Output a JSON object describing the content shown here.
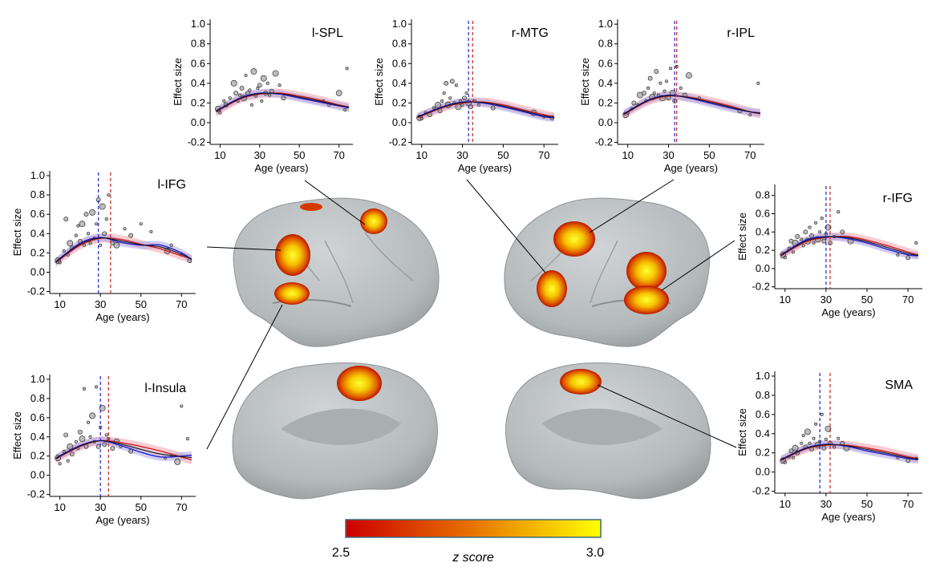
{
  "colorbar": {
    "min_label": "2.5",
    "max_label": "3.0",
    "label": "z score",
    "color_low": "#cc0000",
    "color_mid": "#e87400",
    "color_high": "#ffff00"
  },
  "colors": {
    "adult_fit": "#cc2222",
    "adult_band": "#f5a0a8",
    "child_fit": "#2222cc",
    "child_band": "#a9a6ea",
    "points": "#999999",
    "brain": "#b9bec0"
  },
  "chart_data": [
    {
      "type": "scatter",
      "title": "l-SPL",
      "xlabel": "Age (years)",
      "ylabel": "Effect size",
      "xlim": [
        5,
        77
      ],
      "ylim": [
        -0.22,
        1.05
      ],
      "xticks": [
        "10",
        "30",
        "50",
        "70"
      ],
      "yticks": [
        "-0.2",
        "0.0",
        "0.2",
        "0.4",
        "0.6",
        "0.8",
        "1.0"
      ],
      "vlines": [],
      "peak": 0.3,
      "series": [
        {
          "x": [
            8,
            20,
            30,
            40,
            50,
            60,
            70,
            75
          ],
          "y": [
            0.11,
            0.24,
            0.29,
            0.3,
            0.27,
            0.23,
            0.18,
            0.16
          ]
        },
        {
          "x": [
            8,
            20,
            30,
            40,
            50,
            60,
            70,
            75
          ],
          "y": [
            0.12,
            0.25,
            0.3,
            0.29,
            0.25,
            0.21,
            0.17,
            0.15
          ]
        }
      ],
      "points": [
        [
          9,
          0.14
        ],
        [
          10,
          0.1
        ],
        [
          12,
          0.22
        ],
        [
          13,
          0.18
        ],
        [
          15,
          0.25
        ],
        [
          17,
          0.4
        ],
        [
          18,
          0.3
        ],
        [
          19,
          0.22
        ],
        [
          20,
          0.28
        ],
        [
          21,
          0.35
        ],
        [
          22,
          0.25
        ],
        [
          23,
          0.48
        ],
        [
          24,
          0.3
        ],
        [
          25,
          0.33
        ],
        [
          26,
          0.18
        ],
        [
          27,
          0.52
        ],
        [
          28,
          0.27
        ],
        [
          29,
          0.35
        ],
        [
          30,
          0.38
        ],
        [
          31,
          0.22
        ],
        [
          32,
          0.45
        ],
        [
          33,
          0.3
        ],
        [
          34,
          0.4
        ],
        [
          35,
          0.28
        ],
        [
          36,
          0.32
        ],
        [
          38,
          0.5
        ],
        [
          40,
          0.38
        ],
        [
          42,
          0.25
        ],
        [
          62,
          0.22
        ],
        [
          65,
          0.18
        ],
        [
          70,
          0.3
        ],
        [
          73,
          0.13
        ],
        [
          74,
          0.55
        ]
      ]
    },
    {
      "type": "scatter",
      "title": "r-MTG",
      "xlabel": "Age (years)",
      "ylabel": "Effect size",
      "xlim": [
        5,
        77
      ],
      "ylim": [
        -0.22,
        1.05
      ],
      "xticks": [
        "10",
        "30",
        "50",
        "70"
      ],
      "yticks": [
        "-0.2",
        "0.0",
        "0.2",
        "0.4",
        "0.6",
        "0.8",
        "1.0"
      ],
      "vlines": [
        33,
        35
      ],
      "peak": 0.21,
      "series": [
        {
          "x": [
            8,
            20,
            30,
            40,
            50,
            60,
            70,
            75
          ],
          "y": [
            0.05,
            0.15,
            0.2,
            0.21,
            0.18,
            0.13,
            0.08,
            0.06
          ]
        },
        {
          "x": [
            8,
            20,
            30,
            40,
            50,
            60,
            70,
            75
          ],
          "y": [
            0.06,
            0.16,
            0.21,
            0.2,
            0.16,
            0.11,
            0.06,
            0.05
          ]
        }
      ],
      "points": [
        [
          9,
          0.05
        ],
        [
          10,
          0.04
        ],
        [
          12,
          0.1
        ],
        [
          14,
          0.08
        ],
        [
          16,
          0.15
        ],
        [
          18,
          0.18
        ],
        [
          19,
          0.12
        ],
        [
          20,
          0.22
        ],
        [
          21,
          0.3
        ],
        [
          22,
          0.4
        ],
        [
          23,
          0.18
        ],
        [
          24,
          0.25
        ],
        [
          25,
          0.42
        ],
        [
          26,
          0.2
        ],
        [
          27,
          0.38
        ],
        [
          28,
          0.16
        ],
        [
          29,
          0.22
        ],
        [
          30,
          0.18
        ],
        [
          31,
          0.25
        ],
        [
          32,
          0.3
        ],
        [
          33,
          0.2
        ],
        [
          34,
          0.16
        ],
        [
          36,
          0.22
        ],
        [
          38,
          0.18
        ],
        [
          45,
          0.15
        ],
        [
          65,
          0.1
        ],
        [
          70,
          0.06
        ],
        [
          74,
          0.05
        ]
      ]
    },
    {
      "type": "scatter",
      "title": "r-IPL",
      "xlabel": "Age (years)",
      "ylabel": "Effect size",
      "xlim": [
        5,
        77
      ],
      "ylim": [
        -0.22,
        1.05
      ],
      "xticks": [
        "10",
        "30",
        "50",
        "70"
      ],
      "yticks": [
        "-0.2",
        "0.0",
        "0.2",
        "0.4",
        "0.6",
        "0.8",
        "1.0"
      ],
      "vlines": [
        33,
        34
      ],
      "peak": 0.27,
      "series": [
        {
          "x": [
            8,
            20,
            30,
            40,
            50,
            60,
            70,
            75
          ],
          "y": [
            0.08,
            0.22,
            0.27,
            0.26,
            0.22,
            0.17,
            0.11,
            0.09
          ]
        },
        {
          "x": [
            8,
            20,
            30,
            40,
            50,
            60,
            70,
            75
          ],
          "y": [
            0.09,
            0.23,
            0.28,
            0.25,
            0.2,
            0.15,
            0.11,
            0.1
          ]
        }
      ],
      "points": [
        [
          9,
          0.08
        ],
        [
          10,
          0.1
        ],
        [
          12,
          0.14
        ],
        [
          13,
          0.2
        ],
        [
          15,
          0.18
        ],
        [
          16,
          0.28
        ],
        [
          18,
          0.3
        ],
        [
          19,
          0.22
        ],
        [
          20,
          0.35
        ],
        [
          21,
          0.45
        ],
        [
          22,
          0.26
        ],
        [
          23,
          0.3
        ],
        [
          24,
          0.52
        ],
        [
          25,
          0.28
        ],
        [
          26,
          0.4
        ],
        [
          27,
          0.25
        ],
        [
          28,
          0.32
        ],
        [
          29,
          0.42
        ],
        [
          30,
          0.25
        ],
        [
          31,
          0.55
        ],
        [
          32,
          0.3
        ],
        [
          33,
          0.22
        ],
        [
          34,
          0.57
        ],
        [
          36,
          0.35
        ],
        [
          38,
          0.28
        ],
        [
          40,
          0.48
        ],
        [
          45,
          0.25
        ],
        [
          65,
          0.12
        ],
        [
          70,
          0.08
        ],
        [
          74,
          0.4
        ]
      ]
    },
    {
      "type": "scatter",
      "title": "l-IFG",
      "xlabel": "Age (years)",
      "ylabel": "Effect size",
      "xlim": [
        5,
        77
      ],
      "ylim": [
        -0.22,
        1.05
      ],
      "xticks": [
        "10",
        "30",
        "50",
        "70"
      ],
      "yticks": [
        "-0.2",
        "0.0",
        "0.2",
        "0.4",
        "0.6",
        "0.8",
        "1.0"
      ],
      "vlines": [
        29,
        35
      ],
      "peak": 0.35,
      "series": [
        {
          "x": [
            8,
            20,
            30,
            40,
            50,
            60,
            70,
            75
          ],
          "y": [
            0.1,
            0.28,
            0.35,
            0.34,
            0.29,
            0.24,
            0.17,
            0.14
          ]
        },
        {
          "x": [
            8,
            20,
            30,
            40,
            50,
            60,
            70,
            75
          ],
          "y": [
            0.11,
            0.3,
            0.36,
            0.31,
            0.28,
            0.28,
            0.2,
            0.13
          ]
        }
      ],
      "points": [
        [
          9,
          0.12
        ],
        [
          10,
          0.1
        ],
        [
          12,
          0.22
        ],
        [
          13,
          0.55
        ],
        [
          14,
          0.18
        ],
        [
          15,
          0.3
        ],
        [
          16,
          0.25
        ],
        [
          18,
          0.38
        ],
        [
          19,
          0.48
        ],
        [
          20,
          0.32
        ],
        [
          21,
          0.5
        ],
        [
          22,
          0.28
        ],
        [
          23,
          0.6
        ],
        [
          24,
          0.4
        ],
        [
          25,
          0.3
        ],
        [
          26,
          0.62
        ],
        [
          27,
          0.35
        ],
        [
          28,
          0.5
        ],
        [
          29,
          0.75
        ],
        [
          30,
          0.28
        ],
        [
          31,
          0.68
        ],
        [
          32,
          0.4
        ],
        [
          33,
          0.55
        ],
        [
          34,
          0.8
        ],
        [
          36,
          0.3
        ],
        [
          38,
          0.28
        ],
        [
          42,
          0.45
        ],
        [
          45,
          0.38
        ],
        [
          50,
          0.5
        ],
        [
          55,
          0.42
        ],
        [
          63,
          0.22
        ],
        [
          65,
          0.28
        ],
        [
          70,
          0.18
        ],
        [
          74,
          0.12
        ]
      ]
    },
    {
      "type": "scatter",
      "title": "l-Insula",
      "xlabel": "Age (years)",
      "ylabel": "Effect size",
      "xlim": [
        5,
        77
      ],
      "ylim": [
        -0.22,
        1.05
      ],
      "xticks": [
        "10",
        "30",
        "50",
        "70"
      ],
      "yticks": [
        "-0.2",
        "0.0",
        "0.2",
        "0.4",
        "0.6",
        "0.8",
        "1.0"
      ],
      "vlines": [
        30,
        34
      ],
      "peak": 0.36,
      "series": [
        {
          "x": [
            8,
            20,
            30,
            40,
            50,
            60,
            70,
            75
          ],
          "y": [
            0.17,
            0.3,
            0.36,
            0.34,
            0.3,
            0.25,
            0.19,
            0.16
          ]
        },
        {
          "x": [
            8,
            20,
            30,
            40,
            50,
            60,
            70,
            75
          ],
          "y": [
            0.18,
            0.31,
            0.36,
            0.31,
            0.24,
            0.19,
            0.2,
            0.21
          ]
        }
      ],
      "points": [
        [
          9,
          0.18
        ],
        [
          10,
          0.12
        ],
        [
          12,
          0.25
        ],
        [
          13,
          0.42
        ],
        [
          14,
          0.15
        ],
        [
          15,
          0.3
        ],
        [
          16,
          0.22
        ],
        [
          18,
          0.35
        ],
        [
          19,
          0.28
        ],
        [
          20,
          0.45
        ],
        [
          21,
          0.38
        ],
        [
          22,
          0.9
        ],
        [
          23,
          0.3
        ],
        [
          24,
          0.55
        ],
        [
          25,
          0.4
        ],
        [
          26,
          0.62
        ],
        [
          27,
          0.35
        ],
        [
          28,
          0.92
        ],
        [
          29,
          0.3
        ],
        [
          30,
          0.5
        ],
        [
          31,
          0.7
        ],
        [
          32,
          0.32
        ],
        [
          33,
          0.42
        ],
        [
          34,
          0.38
        ],
        [
          36,
          0.28
        ],
        [
          38,
          0.35
        ],
        [
          40,
          0.3
        ],
        [
          45,
          0.25
        ],
        [
          62,
          0.18
        ],
        [
          65,
          0.2
        ],
        [
          68,
          0.14
        ],
        [
          70,
          0.72
        ],
        [
          73,
          0.38
        ]
      ]
    },
    {
      "type": "scatter",
      "title": "r-IFG",
      "xlabel": "Age (years)",
      "ylabel": "Effect size",
      "xlim": [
        5,
        77
      ],
      "ylim": [
        -0.22,
        0.92
      ],
      "xticks": [
        "10",
        "30",
        "50",
        "70"
      ],
      "yticks": [
        "-0.2",
        "0.0",
        "0.2",
        "0.4",
        "0.6",
        "0.8"
      ],
      "vlines": [
        30,
        32
      ],
      "peak": 0.35,
      "series": [
        {
          "x": [
            8,
            20,
            30,
            40,
            50,
            60,
            70,
            75
          ],
          "y": [
            0.14,
            0.29,
            0.34,
            0.35,
            0.31,
            0.25,
            0.18,
            0.15
          ]
        },
        {
          "x": [
            8,
            20,
            30,
            40,
            50,
            60,
            70,
            75
          ],
          "y": [
            0.15,
            0.31,
            0.35,
            0.33,
            0.28,
            0.21,
            0.15,
            0.14
          ]
        }
      ],
      "points": [
        [
          9,
          0.15
        ],
        [
          10,
          0.12
        ],
        [
          12,
          0.22
        ],
        [
          13,
          0.3
        ],
        [
          14,
          0.18
        ],
        [
          15,
          0.28
        ],
        [
          16,
          0.35
        ],
        [
          18,
          0.32
        ],
        [
          19,
          0.25
        ],
        [
          20,
          0.4
        ],
        [
          21,
          0.3
        ],
        [
          22,
          0.45
        ],
        [
          23,
          0.36
        ],
        [
          24,
          0.28
        ],
        [
          25,
          0.5
        ],
        [
          26,
          0.32
        ],
        [
          27,
          0.4
        ],
        [
          28,
          0.55
        ],
        [
          29,
          0.3
        ],
        [
          30,
          0.38
        ],
        [
          31,
          0.45
        ],
        [
          32,
          0.28
        ],
        [
          34,
          0.35
        ],
        [
          36,
          0.62
        ],
        [
          38,
          0.4
        ],
        [
          42,
          0.3
        ],
        [
          65,
          0.15
        ],
        [
          70,
          0.12
        ],
        [
          74,
          0.28
        ]
      ]
    },
    {
      "type": "scatter",
      "title": "SMA",
      "xlabel": "Age (years)",
      "ylabel": "Effect size",
      "xlim": [
        5,
        77
      ],
      "ylim": [
        -0.22,
        1.05
      ],
      "xticks": [
        "10",
        "30",
        "50",
        "70"
      ],
      "yticks": [
        "-0.2",
        "0.0",
        "0.2",
        "0.4",
        "0.6",
        "0.8",
        "1.0"
      ],
      "vlines": [
        27,
        32
      ],
      "peak": 0.28,
      "series": [
        {
          "x": [
            8,
            20,
            30,
            40,
            50,
            60,
            70,
            75
          ],
          "y": [
            0.12,
            0.24,
            0.28,
            0.28,
            0.25,
            0.21,
            0.16,
            0.14
          ]
        },
        {
          "x": [
            8,
            20,
            30,
            40,
            50,
            60,
            70,
            75
          ],
          "y": [
            0.13,
            0.25,
            0.29,
            0.27,
            0.22,
            0.18,
            0.14,
            0.13
          ]
        }
      ],
      "points": [
        [
          9,
          0.12
        ],
        [
          10,
          0.1
        ],
        [
          12,
          0.16
        ],
        [
          13,
          0.22
        ],
        [
          14,
          0.15
        ],
        [
          15,
          0.25
        ],
        [
          16,
          0.2
        ],
        [
          18,
          0.3
        ],
        [
          19,
          0.38
        ],
        [
          20,
          0.26
        ],
        [
          21,
          0.42
        ],
        [
          22,
          0.3
        ],
        [
          23,
          0.24
        ],
        [
          24,
          0.35
        ],
        [
          25,
          0.5
        ],
        [
          26,
          0.28
        ],
        [
          27,
          0.32
        ],
        [
          28,
          0.6
        ],
        [
          29,
          0.25
        ],
        [
          30,
          0.34
        ],
        [
          31,
          0.45
        ],
        [
          32,
          0.3
        ],
        [
          34,
          0.26
        ],
        [
          36,
          0.35
        ],
        [
          38,
          0.3
        ],
        [
          40,
          0.25
        ],
        [
          65,
          0.15
        ],
        [
          70,
          0.12
        ],
        [
          74,
          0.14
        ]
      ]
    }
  ]
}
